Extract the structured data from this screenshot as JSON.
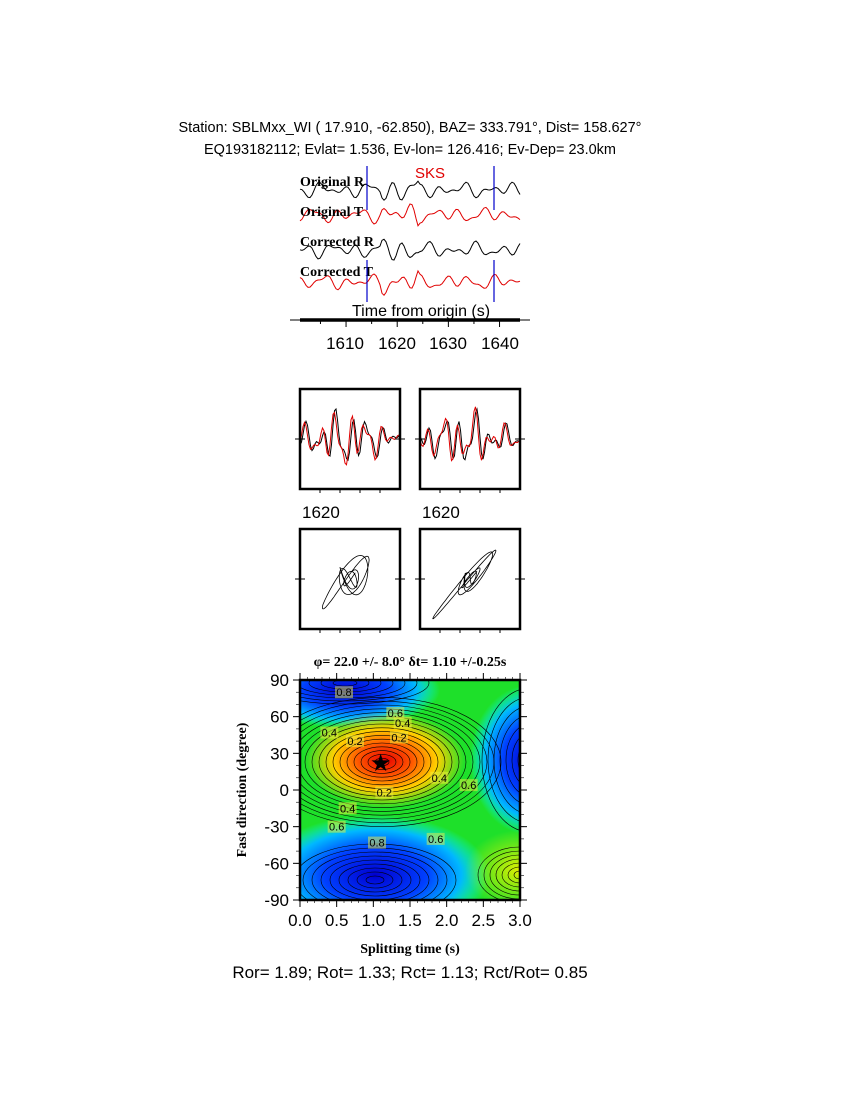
{
  "header": {
    "station_line": "Station: SBLMxx_WI (  17.910,  -62.850), BAZ=  333.791°, Dist=  158.627°",
    "event_line": "EQ193182112; Evlat=   1.536, Ev-lon= 126.416; Ev-Dep= 23.0km"
  },
  "waveforms": {
    "phase_label": "SKS",
    "traces": [
      {
        "label": "Original R",
        "color": "#000000"
      },
      {
        "label": "Original T",
        "color": "#e00000"
      },
      {
        "label": "Corrected R",
        "color": "#000000"
      },
      {
        "label": "Corrected T",
        "color": "#e00000"
      }
    ],
    "window_color": "#0000cc",
    "window_start": 1614,
    "window_end": 1639,
    "xlabel": "Time from origin (s)",
    "xticks": [
      "1610",
      "1620",
      "1630",
      "1640"
    ],
    "xlim": [
      1601,
      1644
    ]
  },
  "small_panels": {
    "waveform_label_left": "1620",
    "waveform_label_right": "1620"
  },
  "chart_data": {
    "type": "heatmap",
    "title": "φ= 22.0 +/- 8.0° δt= 1.10 +/-0.25s",
    "xlabel": "Splitting time (s)",
    "ylabel": "Fast direction (degree)",
    "xlim": [
      0.0,
      3.0
    ],
    "ylim": [
      -90,
      90
    ],
    "xticks": [
      "0.0",
      "0.5",
      "1.0",
      "1.5",
      "2.0",
      "2.5",
      "3.0"
    ],
    "yticks": [
      "90",
      "60",
      "30",
      "0",
      "-30",
      "-60",
      "-90"
    ],
    "best_fit": {
      "dt": 1.1,
      "phi": 22.0,
      "marker": "star"
    },
    "contour_labels": [
      {
        "text": "0.8",
        "dt": 0.6,
        "phi": 80
      },
      {
        "text": "0.6",
        "dt": 1.3,
        "phi": 63
      },
      {
        "text": "0.4",
        "dt": 1.4,
        "phi": 55
      },
      {
        "text": "0.4",
        "dt": 0.4,
        "phi": 47
      },
      {
        "text": "0.2",
        "dt": 0.75,
        "phi": 40
      },
      {
        "text": "0.2",
        "dt": 1.35,
        "phi": 43
      },
      {
        "text": "0.4",
        "dt": 1.9,
        "phi": 10
      },
      {
        "text": "0.6",
        "dt": 2.3,
        "phi": 4
      },
      {
        "text": "0.2",
        "dt": 1.15,
        "phi": -2
      },
      {
        "text": "0.4",
        "dt": 0.65,
        "phi": -15
      },
      {
        "text": "0.6",
        "dt": 0.5,
        "phi": -30
      },
      {
        "text": "0.8",
        "dt": 1.05,
        "phi": -43
      },
      {
        "text": "0.6",
        "dt": 1.85,
        "phi": -40
      }
    ],
    "colorscale": [
      "#ff0000",
      "#ffff00",
      "#00e000",
      "#00ffff",
      "#0000ff"
    ],
    "grid": false
  },
  "footer": {
    "ratios": "Ror= 1.89; Rot= 1.33; Rct= 1.13; Rct/Rot= 0.85"
  }
}
